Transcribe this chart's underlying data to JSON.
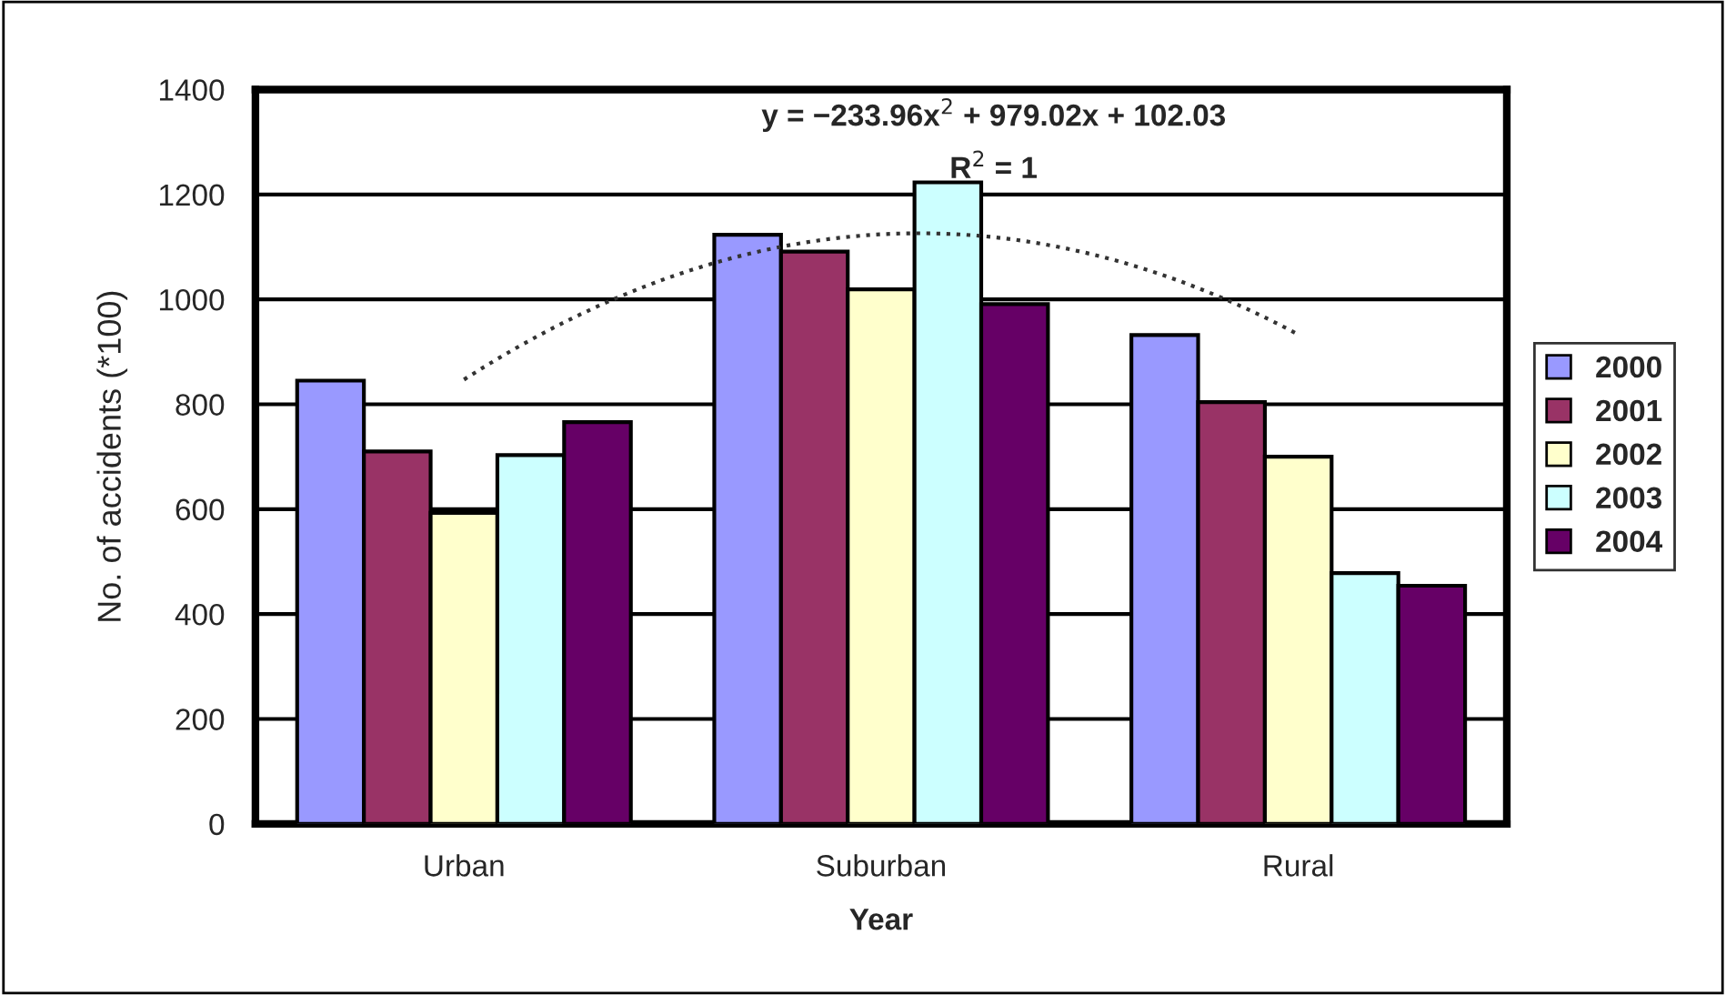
{
  "chart_data": {
    "type": "bar",
    "xlabel": "Year",
    "ylabel": "No. of accidents (*100)",
    "categories": [
      "Urban",
      "Suburban",
      "Rural"
    ],
    "series": [
      {
        "name": "2000",
        "color": "#9999ff",
        "values": [
          845,
          1123,
          932
        ]
      },
      {
        "name": "2001",
        "color": "#993366",
        "values": [
          710,
          1091,
          804
        ]
      },
      {
        "name": "2002",
        "color": "#ffffcc",
        "values": [
          593,
          1019,
          700
        ]
      },
      {
        "name": "2003",
        "color": "#ccffff",
        "values": [
          703,
          1223,
          478
        ]
      },
      {
        "name": "2004",
        "color": "#660066",
        "values": [
          766,
          991,
          454
        ]
      },
      {
        "type": "line",
        "color": "#333333",
        "line_style": "dotted",
        "values": [
          847,
          1124,
          933
        ]
      }
    ],
    "ylim": [
      0,
      1400
    ],
    "yticks": [
      0,
      200,
      400,
      600,
      800,
      1000,
      1200,
      1400
    ],
    "grid": "y",
    "legend": "right",
    "annotations": [
      "y = −233.96x$^{2}$ + 979.02x + 102.03",
      "R$^{2}$ = 1"
    ]
  }
}
